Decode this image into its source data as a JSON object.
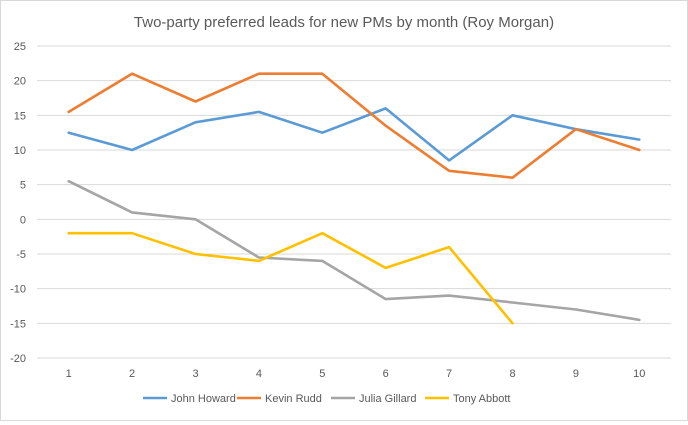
{
  "chart_data": {
    "type": "line",
    "title": "Two-party preferred leads for new PMs by month (Roy Morgan)",
    "xlabel": "",
    "ylabel": "",
    "x": [
      1,
      2,
      3,
      4,
      5,
      6,
      7,
      8,
      9,
      10
    ],
    "ylim": [
      -20,
      25
    ],
    "yticks": [
      25,
      20,
      15,
      10,
      5,
      0,
      -5,
      -10,
      -15,
      -20
    ],
    "grid": true,
    "legend_position": "bottom",
    "series": [
      {
        "name": "John Howard",
        "color": "#5b9bd5",
        "values": [
          12.5,
          10,
          14,
          15.5,
          12.5,
          16,
          8.5,
          15,
          13,
          11.5
        ]
      },
      {
        "name": "Kevin Rudd",
        "color": "#ed7d31",
        "values": [
          15.5,
          21,
          17,
          21,
          21,
          13.5,
          7,
          6,
          13,
          10
        ]
      },
      {
        "name": "Julia Gillard",
        "color": "#a5a5a5",
        "values": [
          5.5,
          1,
          0,
          -5.5,
          -6,
          -11.5,
          -11,
          -12,
          -13,
          -14.5
        ]
      },
      {
        "name": "Tony Abbott",
        "color": "#ffc000",
        "values": [
          -2,
          -2,
          -5,
          -6,
          -2,
          -7,
          -4,
          -15,
          null,
          null
        ]
      }
    ]
  }
}
